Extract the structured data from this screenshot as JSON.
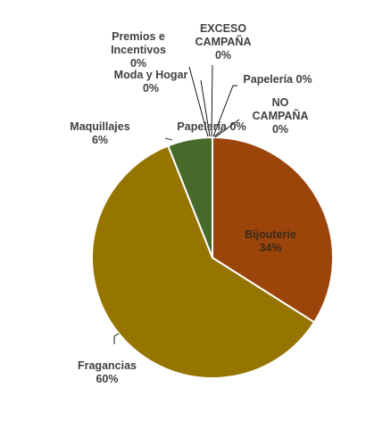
{
  "colors": {
    "background": "#ffffff",
    "slice_border": "#ffffff",
    "label_text": "#404040"
  },
  "chart_data": {
    "type": "pie",
    "title": "",
    "start": "12 o'clock",
    "direction": "clockwise",
    "slices": [
      {
        "name": "Bijouterie",
        "value": 34,
        "label": "34%",
        "color": "#9C450B"
      },
      {
        "name": "Fragancias",
        "value": 60,
        "label": "60%",
        "color": "#967400"
      },
      {
        "name": "Maquillajes",
        "value": 6,
        "label": "6%",
        "color": "#476A2A"
      },
      {
        "name": "Papelería",
        "value": 0,
        "label": "0%",
        "color": "#2F5597"
      },
      {
        "name": "Moda y Hogar",
        "value": 0,
        "label": "0%",
        "color": "#C55A11"
      },
      {
        "name": "Premios e Incentivos",
        "value": 0,
        "label": "0%",
        "color": "#7F6000"
      },
      {
        "name": "EXCESO CAMPAÑA",
        "value": 0,
        "label": "0%",
        "color": "#375623"
      },
      {
        "name": "Papelería",
        "value": 0,
        "label": "0%",
        "color": "#203864"
      },
      {
        "name": "NO CAMPAÑA",
        "value": 0,
        "label": "0%",
        "color": "#843C0C"
      }
    ],
    "data_labels": [
      {
        "lines": [
          "Bijouterie",
          "34%"
        ]
      },
      {
        "lines": [
          "Fragancias",
          "60%"
        ]
      },
      {
        "lines": [
          "Maquillajes",
          "6%"
        ]
      },
      {
        "lines": [
          "Papelería 0%"
        ]
      },
      {
        "lines": [
          "Moda y Hogar",
          "0%"
        ]
      },
      {
        "lines": [
          "Premios e",
          "Incentivos",
          "0%"
        ]
      },
      {
        "lines": [
          "EXCESO",
          "CAMPAÑA",
          "0%"
        ]
      },
      {
        "lines": [
          "Papelería 0%"
        ]
      },
      {
        "lines": [
          "NO",
          "CAMPAÑA",
          "0%"
        ]
      }
    ]
  }
}
